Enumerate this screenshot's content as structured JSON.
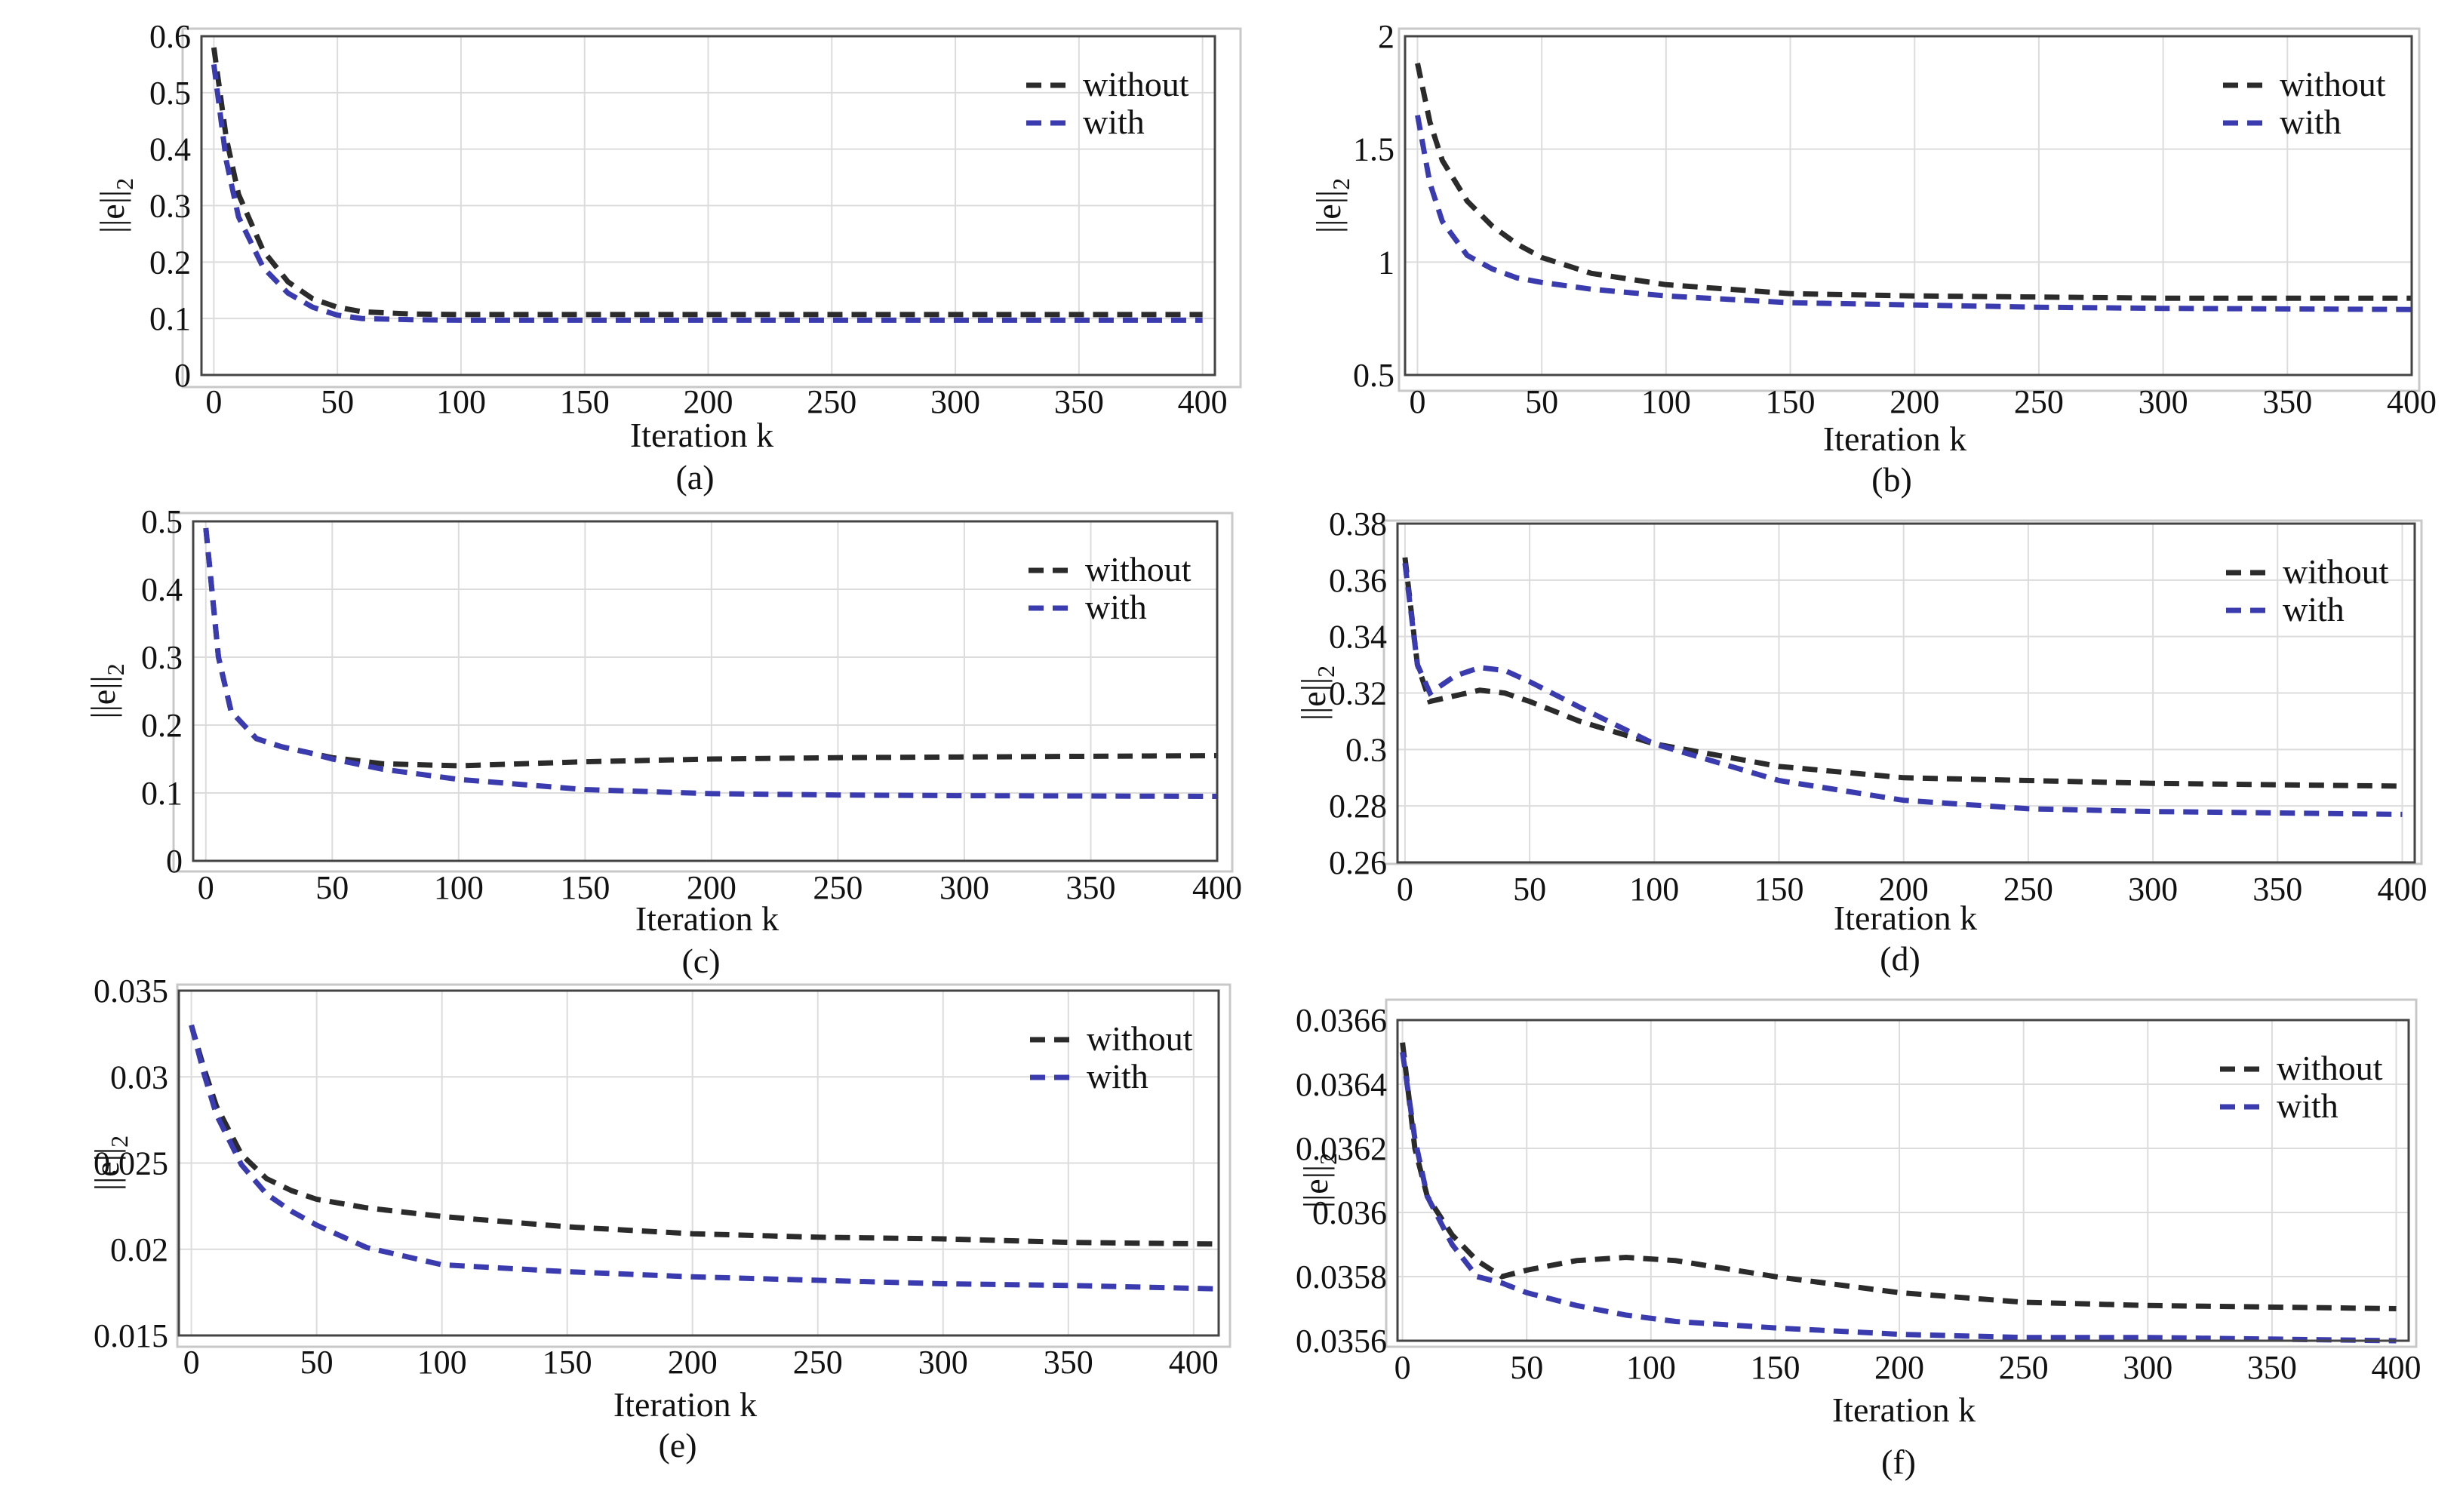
{
  "figure": {
    "y_axis_label": "||e||",
    "y_axis_label_subscript": "2",
    "series_colors": {
      "without": "#2b2b2b",
      "with": "#3b3bb0"
    }
  },
  "chart_data": [
    {
      "id": "a",
      "type": "line",
      "caption": "(a)",
      "xlabel": "Iteration k",
      "ylabel": "||e||2",
      "xlim": [
        -5,
        405
      ],
      "ylim": [
        0,
        0.6
      ],
      "xticks": [
        0,
        50,
        100,
        150,
        200,
        250,
        300,
        350,
        400
      ],
      "yticks": [
        0,
        0.1,
        0.2,
        0.3,
        0.4,
        0.5,
        0.6
      ],
      "ytick_labels": [
        "0",
        "0.1",
        "0.2",
        "0.3",
        "0.4",
        "0.5",
        "0.6"
      ],
      "legend": [
        "without",
        "with"
      ],
      "legend_position": "top-right",
      "series": [
        {
          "name": "without",
          "x": [
            0,
            5,
            10,
            20,
            30,
            40,
            50,
            60,
            80,
            100,
            150,
            200,
            300,
            400
          ],
          "y": [
            0.58,
            0.42,
            0.32,
            0.22,
            0.165,
            0.135,
            0.12,
            0.112,
            0.108,
            0.107,
            0.107,
            0.107,
            0.107,
            0.107
          ]
        },
        {
          "name": "with",
          "x": [
            0,
            5,
            10,
            20,
            30,
            40,
            50,
            60,
            80,
            100,
            150,
            200,
            300,
            400
          ],
          "y": [
            0.55,
            0.38,
            0.28,
            0.19,
            0.145,
            0.12,
            0.106,
            0.1,
            0.098,
            0.097,
            0.097,
            0.097,
            0.097,
            0.097
          ]
        }
      ]
    },
    {
      "id": "b",
      "type": "line",
      "caption": "(b)",
      "xlabel": "Iteration k",
      "ylabel": "||e||2",
      "xlim": [
        -5,
        400
      ],
      "ylim": [
        0.5,
        2
      ],
      "xticks": [
        0,
        50,
        100,
        150,
        200,
        250,
        300,
        350,
        400
      ],
      "yticks": [
        0.5,
        1,
        1.5,
        2
      ],
      "ytick_labels": [
        "0.5",
        "1",
        "1.5",
        "2"
      ],
      "legend": [
        "without",
        "with"
      ],
      "legend_position": "top-right",
      "series": [
        {
          "name": "without",
          "x": [
            0,
            5,
            10,
            20,
            30,
            40,
            50,
            70,
            100,
            150,
            200,
            250,
            300,
            400
          ],
          "y": [
            1.88,
            1.62,
            1.45,
            1.27,
            1.16,
            1.08,
            1.02,
            0.95,
            0.9,
            0.86,
            0.85,
            0.845,
            0.84,
            0.84
          ]
        },
        {
          "name": "with",
          "x": [
            0,
            5,
            10,
            20,
            30,
            40,
            50,
            70,
            100,
            150,
            200,
            250,
            300,
            400
          ],
          "y": [
            1.65,
            1.35,
            1.18,
            1.03,
            0.97,
            0.93,
            0.91,
            0.88,
            0.85,
            0.82,
            0.81,
            0.8,
            0.795,
            0.79
          ]
        }
      ]
    },
    {
      "id": "c",
      "type": "line",
      "caption": "(c)",
      "xlabel": "Iteration k",
      "ylabel": "||e||2",
      "xlim": [
        -5,
        400
      ],
      "ylim": [
        0,
        0.5
      ],
      "xticks": [
        0,
        50,
        100,
        150,
        200,
        250,
        300,
        350,
        400
      ],
      "yticks": [
        0,
        0.1,
        0.2,
        0.3,
        0.4,
        0.5
      ],
      "ytick_labels": [
        "0",
        "0.1",
        "0.2",
        "0.3",
        "0.4",
        "0.5"
      ],
      "legend": [
        "without",
        "with"
      ],
      "legend_position": "top-right",
      "series": [
        {
          "name": "without",
          "x": [
            0,
            5,
            10,
            20,
            30,
            40,
            50,
            70,
            100,
            150,
            200,
            250,
            300,
            400
          ],
          "y": [
            0.49,
            0.3,
            0.22,
            0.18,
            0.168,
            0.16,
            0.152,
            0.143,
            0.14,
            0.146,
            0.15,
            0.152,
            0.153,
            0.155
          ]
        },
        {
          "name": "with",
          "x": [
            0,
            5,
            10,
            20,
            30,
            40,
            50,
            70,
            100,
            150,
            200,
            250,
            300,
            400
          ],
          "y": [
            0.49,
            0.3,
            0.22,
            0.18,
            0.168,
            0.16,
            0.15,
            0.135,
            0.12,
            0.105,
            0.099,
            0.097,
            0.096,
            0.095
          ]
        }
      ]
    },
    {
      "id": "d",
      "type": "line",
      "caption": "(d)",
      "xlabel": "Iteration k",
      "ylabel": "||e||2",
      "xlim": [
        -3,
        405
      ],
      "ylim": [
        0.26,
        0.38
      ],
      "xticks": [
        0,
        50,
        100,
        150,
        200,
        250,
        300,
        350,
        400
      ],
      "yticks": [
        0.26,
        0.28,
        0.3,
        0.32,
        0.34,
        0.36,
        0.38
      ],
      "ytick_labels": [
        "0.26",
        "0.28",
        "0.3",
        "0.32",
        "0.34",
        "0.36",
        "0.38"
      ],
      "legend": [
        "without",
        "with"
      ],
      "legend_position": "top-right",
      "series": [
        {
          "name": "without",
          "x": [
            0,
            5,
            10,
            20,
            30,
            40,
            50,
            70,
            100,
            150,
            200,
            250,
            300,
            400
          ],
          "y": [
            0.368,
            0.33,
            0.317,
            0.319,
            0.321,
            0.32,
            0.317,
            0.31,
            0.302,
            0.294,
            0.29,
            0.289,
            0.288,
            0.287
          ]
        },
        {
          "name": "with",
          "x": [
            0,
            5,
            10,
            20,
            30,
            40,
            50,
            70,
            100,
            150,
            200,
            250,
            300,
            400
          ],
          "y": [
            0.366,
            0.33,
            0.32,
            0.326,
            0.329,
            0.328,
            0.324,
            0.315,
            0.302,
            0.289,
            0.282,
            0.279,
            0.278,
            0.277
          ]
        }
      ]
    },
    {
      "id": "e",
      "type": "line",
      "caption": "(e)",
      "xlabel": "Iteration k",
      "ylabel": "||e||2",
      "xlim": [
        -5,
        410
      ],
      "ylim": [
        0.015,
        0.035
      ],
      "xticks": [
        0,
        50,
        100,
        150,
        200,
        250,
        300,
        350,
        400
      ],
      "yticks": [
        0.015,
        0.02,
        0.025,
        0.03,
        0.035
      ],
      "ytick_labels": [
        "0.015",
        "0.02",
        "0.025",
        "0.03",
        "0.035"
      ],
      "legend": [
        "without",
        "with"
      ],
      "legend_position": "top-right",
      "series": [
        {
          "name": "without",
          "x": [
            0,
            5,
            10,
            20,
            30,
            40,
            50,
            70,
            100,
            150,
            200,
            250,
            300,
            350,
            410
          ],
          "y": [
            0.033,
            0.0305,
            0.0283,
            0.0255,
            0.0241,
            0.0234,
            0.0229,
            0.0224,
            0.0219,
            0.0213,
            0.0209,
            0.0207,
            0.0206,
            0.0204,
            0.0203
          ]
        },
        {
          "name": "with",
          "x": [
            0,
            5,
            10,
            20,
            30,
            40,
            50,
            70,
            100,
            150,
            200,
            250,
            300,
            350,
            410
          ],
          "y": [
            0.033,
            0.0302,
            0.0278,
            0.0249,
            0.0232,
            0.0222,
            0.0214,
            0.0201,
            0.0191,
            0.0187,
            0.0184,
            0.0182,
            0.018,
            0.0179,
            0.0177
          ]
        }
      ]
    },
    {
      "id": "f",
      "type": "line",
      "caption": "(f)",
      "xlabel": "Iteration k",
      "ylabel": "||e||2",
      "xlim": [
        -2,
        405
      ],
      "ylim": [
        0.0356,
        0.0366
      ],
      "xticks": [
        0,
        50,
        100,
        150,
        200,
        250,
        300,
        350,
        400
      ],
      "yticks": [
        0.0356,
        0.0358,
        0.036,
        0.0362,
        0.0364,
        0.0366
      ],
      "ytick_labels": [
        "0.0356",
        "0.0358",
        "0.036",
        "0.0362",
        "0.0364",
        "0.0366"
      ],
      "legend": [
        "without",
        "with"
      ],
      "legend_position": "top-right",
      "series": [
        {
          "name": "without",
          "x": [
            0,
            5,
            10,
            20,
            30,
            40,
            50,
            70,
            90,
            110,
            150,
            200,
            250,
            300,
            400
          ],
          "y": [
            0.03653,
            0.0362,
            0.03605,
            0.03593,
            0.03585,
            0.0358,
            0.03582,
            0.03585,
            0.03586,
            0.03585,
            0.0358,
            0.03575,
            0.03572,
            0.03571,
            0.0357
          ]
        },
        {
          "name": "with",
          "x": [
            0,
            5,
            10,
            20,
            30,
            40,
            50,
            70,
            90,
            110,
            150,
            200,
            250,
            300,
            400
          ],
          "y": [
            0.0365,
            0.03623,
            0.03605,
            0.0359,
            0.0358,
            0.03578,
            0.03575,
            0.03571,
            0.03568,
            0.03566,
            0.03564,
            0.03562,
            0.03561,
            0.03561,
            0.0356
          ]
        }
      ]
    }
  ]
}
